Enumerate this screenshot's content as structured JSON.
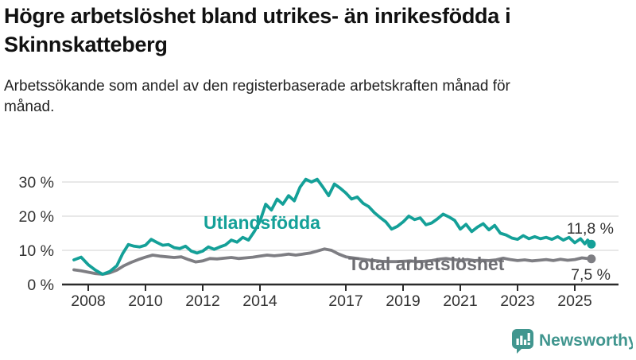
{
  "header": {
    "title": "Högre arbetslöshet bland utrikes- än inrikesfödda i Skinnskatteberg",
    "subtitle": "Arbetssökande som andel av den registerbaserade arbetskraften månad för månad."
  },
  "chart_data": {
    "type": "line",
    "title": "Högre arbetslöshet bland utrikes- än inrikesfödda i Skinnskatteberg",
    "subtitle": "Arbetssökande som andel av den registerbaserade arbetskraften månad för månad.",
    "unit": "%",
    "xlim": [
      2007.3,
      2026.2
    ],
    "ylim": [
      0,
      32
    ],
    "grid": "horizontal",
    "legend_position": "inline-labels",
    "x_ticks": [
      2008,
      2010,
      2012,
      2014,
      2017,
      2019,
      2021,
      2023,
      2025
    ],
    "x_tick_labels": [
      "2008",
      "2010",
      "2012",
      "2014",
      "2017",
      "2019",
      "2021",
      "2023",
      "2025"
    ],
    "y_ticks": [
      0,
      10,
      20,
      30
    ],
    "y_tick_labels": [
      "0 %",
      "10 %",
      "20 %",
      "30 %"
    ],
    "series": [
      {
        "name": "Total arbetslöshet",
        "label": "Total arbetslöshet",
        "color": "#7e7e83",
        "label_color": "#6e6e73",
        "end_label": "7,5 %",
        "last_value": 7.5,
        "points": [
          [
            2007.5,
            4.3
          ],
          [
            2007.75,
            4.0
          ],
          [
            2008.0,
            3.6
          ],
          [
            2008.25,
            3.2
          ],
          [
            2008.5,
            3.0
          ],
          [
            2008.75,
            3.4
          ],
          [
            2009.0,
            4.2
          ],
          [
            2009.25,
            5.5
          ],
          [
            2009.5,
            6.5
          ],
          [
            2009.75,
            7.3
          ],
          [
            2010.0,
            8.0
          ],
          [
            2010.25,
            8.6
          ],
          [
            2010.5,
            8.3
          ],
          [
            2010.75,
            8.1
          ],
          [
            2011.0,
            7.9
          ],
          [
            2011.25,
            8.1
          ],
          [
            2011.5,
            7.3
          ],
          [
            2011.75,
            6.6
          ],
          [
            2012.0,
            6.9
          ],
          [
            2012.25,
            7.6
          ],
          [
            2012.5,
            7.5
          ],
          [
            2012.75,
            7.7
          ],
          [
            2013.0,
            7.9
          ],
          [
            2013.25,
            7.6
          ],
          [
            2013.5,
            7.8
          ],
          [
            2013.75,
            8.0
          ],
          [
            2014.0,
            8.3
          ],
          [
            2014.25,
            8.6
          ],
          [
            2014.5,
            8.4
          ],
          [
            2014.75,
            8.6
          ],
          [
            2015.0,
            8.9
          ],
          [
            2015.25,
            8.6
          ],
          [
            2015.5,
            8.9
          ],
          [
            2015.75,
            9.2
          ],
          [
            2016.0,
            9.8
          ],
          [
            2016.25,
            10.4
          ],
          [
            2016.5,
            10.0
          ],
          [
            2016.75,
            8.9
          ],
          [
            2017.0,
            8.1
          ],
          [
            2017.25,
            7.8
          ],
          [
            2017.5,
            7.5
          ],
          [
            2017.75,
            7.2
          ],
          [
            2018.0,
            7.0
          ],
          [
            2018.25,
            6.8
          ],
          [
            2018.5,
            6.7
          ],
          [
            2018.75,
            6.7
          ],
          [
            2019.0,
            6.8
          ],
          [
            2019.25,
            6.9
          ],
          [
            2019.5,
            6.7
          ],
          [
            2019.75,
            6.8
          ],
          [
            2020.0,
            7.0
          ],
          [
            2020.25,
            7.4
          ],
          [
            2020.5,
            7.6
          ],
          [
            2020.75,
            7.3
          ],
          [
            2021.0,
            7.1
          ],
          [
            2021.25,
            7.3
          ],
          [
            2021.5,
            7.0
          ],
          [
            2021.75,
            7.1
          ],
          [
            2022.0,
            7.0
          ],
          [
            2022.25,
            7.2
          ],
          [
            2022.5,
            7.7
          ],
          [
            2022.75,
            7.3
          ],
          [
            2023.0,
            7.0
          ],
          [
            2023.25,
            7.2
          ],
          [
            2023.5,
            6.9
          ],
          [
            2023.75,
            7.1
          ],
          [
            2024.0,
            7.3
          ],
          [
            2024.25,
            7.0
          ],
          [
            2024.5,
            7.4
          ],
          [
            2024.75,
            7.1
          ],
          [
            2025.0,
            7.3
          ],
          [
            2025.25,
            7.8
          ],
          [
            2025.58,
            7.5
          ]
        ]
      },
      {
        "name": "Utlandsfödda",
        "label": "Utlandsfödda",
        "color": "#14a098",
        "label_color": "#14a098",
        "end_label": "11,8 %",
        "last_value": 11.8,
        "points": [
          [
            2007.5,
            7.2
          ],
          [
            2007.75,
            8.0
          ],
          [
            2008.0,
            5.8
          ],
          [
            2008.25,
            4.2
          ],
          [
            2008.5,
            3.0
          ],
          [
            2008.75,
            3.8
          ],
          [
            2009.0,
            5.5
          ],
          [
            2009.2,
            9.0
          ],
          [
            2009.4,
            11.7
          ],
          [
            2009.6,
            11.2
          ],
          [
            2009.8,
            11.0
          ],
          [
            2010.0,
            11.5
          ],
          [
            2010.2,
            13.2
          ],
          [
            2010.4,
            12.3
          ],
          [
            2010.6,
            11.5
          ],
          [
            2010.8,
            11.7
          ],
          [
            2011.0,
            10.8
          ],
          [
            2011.2,
            10.5
          ],
          [
            2011.4,
            11.2
          ],
          [
            2011.6,
            9.8
          ],
          [
            2011.8,
            9.2
          ],
          [
            2012.0,
            9.8
          ],
          [
            2012.2,
            11.0
          ],
          [
            2012.4,
            10.3
          ],
          [
            2012.6,
            11.0
          ],
          [
            2012.8,
            11.6
          ],
          [
            2013.0,
            13.0
          ],
          [
            2013.2,
            12.4
          ],
          [
            2013.4,
            13.8
          ],
          [
            2013.6,
            13.0
          ],
          [
            2013.8,
            15.5
          ],
          [
            2014.0,
            18.5
          ],
          [
            2014.2,
            23.5
          ],
          [
            2014.4,
            21.8
          ],
          [
            2014.6,
            25.0
          ],
          [
            2014.8,
            23.5
          ],
          [
            2015.0,
            26.0
          ],
          [
            2015.2,
            24.5
          ],
          [
            2015.4,
            28.5
          ],
          [
            2015.6,
            30.8
          ],
          [
            2015.8,
            30.0
          ],
          [
            2016.0,
            30.8
          ],
          [
            2016.2,
            28.5
          ],
          [
            2016.4,
            26.0
          ],
          [
            2016.6,
            29.4
          ],
          [
            2016.8,
            28.2
          ],
          [
            2017.0,
            26.8
          ],
          [
            2017.2,
            25.0
          ],
          [
            2017.4,
            25.6
          ],
          [
            2017.6,
            23.8
          ],
          [
            2017.8,
            22.8
          ],
          [
            2018.0,
            21.0
          ],
          [
            2018.2,
            19.6
          ],
          [
            2018.4,
            18.3
          ],
          [
            2018.6,
            16.2
          ],
          [
            2018.8,
            17.0
          ],
          [
            2019.0,
            18.3
          ],
          [
            2019.2,
            20.0
          ],
          [
            2019.4,
            19.0
          ],
          [
            2019.6,
            19.5
          ],
          [
            2019.8,
            17.5
          ],
          [
            2020.0,
            18.0
          ],
          [
            2020.2,
            19.2
          ],
          [
            2020.4,
            20.6
          ],
          [
            2020.6,
            19.8
          ],
          [
            2020.8,
            18.8
          ],
          [
            2021.0,
            16.2
          ],
          [
            2021.2,
            17.6
          ],
          [
            2021.4,
            15.5
          ],
          [
            2021.6,
            16.8
          ],
          [
            2021.8,
            17.8
          ],
          [
            2022.0,
            16.0
          ],
          [
            2022.2,
            17.3
          ],
          [
            2022.4,
            15.0
          ],
          [
            2022.6,
            14.5
          ],
          [
            2022.8,
            13.6
          ],
          [
            2023.0,
            13.2
          ],
          [
            2023.2,
            14.3
          ],
          [
            2023.4,
            13.4
          ],
          [
            2023.6,
            14.0
          ],
          [
            2023.8,
            13.4
          ],
          [
            2024.0,
            13.8
          ],
          [
            2024.2,
            13.2
          ],
          [
            2024.4,
            14.0
          ],
          [
            2024.6,
            13.0
          ],
          [
            2024.8,
            13.8
          ],
          [
            2025.0,
            12.2
          ],
          [
            2025.2,
            13.4
          ],
          [
            2025.35,
            11.9
          ],
          [
            2025.45,
            13.0
          ],
          [
            2025.58,
            11.8
          ]
        ]
      }
    ],
    "annotations": {
      "series_label_utlandsfodda": "Utlandsfödda",
      "series_label_total": "Total arbetslöshet",
      "end_value_utlandsfodda": "11,8 %",
      "end_value_total": "7,5 %"
    },
    "colors": {
      "grid": "#d9d9d9",
      "axis": "#2b2b2b",
      "tick_text": "#333333",
      "value_text": "#333333"
    }
  },
  "branding": {
    "logo_text": "Newsworthy",
    "logo_icon": "newsworthy-chart-speech-bubble-icon",
    "color": "#41968f"
  }
}
